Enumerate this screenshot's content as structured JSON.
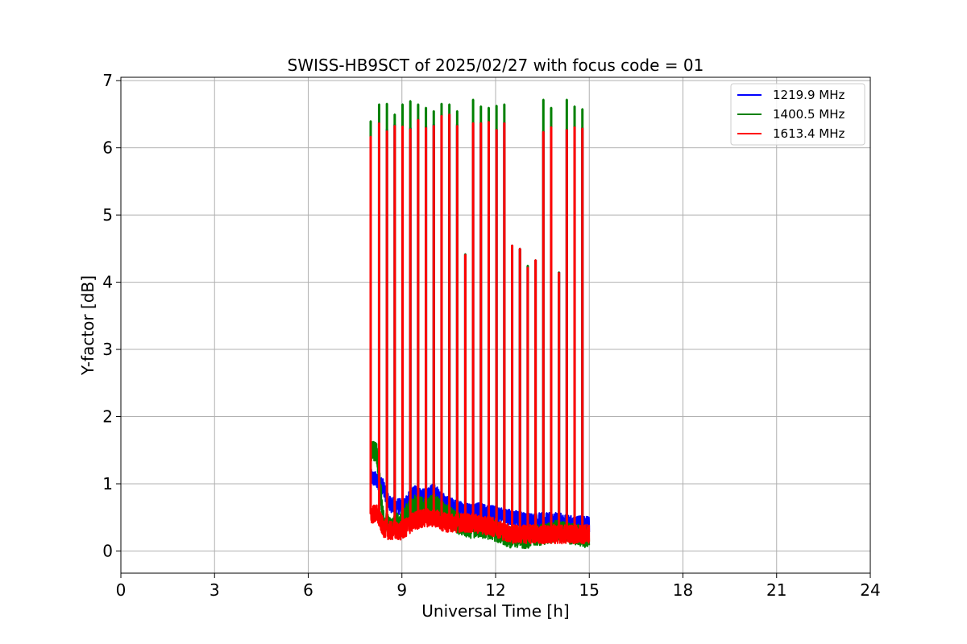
{
  "chart_data": {
    "type": "line",
    "title": "SWISS-HB9SCT of 2025/02/27 with focus code = 01",
    "xlabel": "Universal Time [h]",
    "ylabel": "Y-factor [dB]",
    "xlim": [
      0,
      24
    ],
    "ylim": [
      -0.33,
      7.05
    ],
    "xticks": [
      0,
      3,
      6,
      9,
      12,
      15,
      18,
      21,
      24
    ],
    "yticks": [
      0,
      1,
      2,
      3,
      4,
      5,
      6,
      7
    ],
    "grid": true,
    "legend_position": "top-right",
    "observation_range": [
      8.0,
      15.0
    ],
    "series": [
      {
        "name": "1219.9 MHz",
        "color": "#0000ff",
        "baseline": [
          [
            8.0,
            1.1
          ],
          [
            8.2,
            1.05
          ],
          [
            8.4,
            0.95
          ],
          [
            8.6,
            0.7
          ],
          [
            9.0,
            0.65
          ],
          [
            9.4,
            0.85
          ],
          [
            9.8,
            0.8
          ],
          [
            10.0,
            0.9
          ],
          [
            10.4,
            0.7
          ],
          [
            11.0,
            0.6
          ],
          [
            11.5,
            0.6
          ],
          [
            12.0,
            0.55
          ],
          [
            12.5,
            0.5
          ],
          [
            13.0,
            0.45
          ],
          [
            13.5,
            0.45
          ],
          [
            14.0,
            0.45
          ],
          [
            14.5,
            0.4
          ],
          [
            15.0,
            0.4
          ]
        ],
        "noise": 0.12,
        "spikes": [
          [
            8.0,
            6.2
          ],
          [
            8.27,
            6.38
          ],
          [
            8.52,
            6.28
          ],
          [
            8.77,
            6.35
          ],
          [
            9.02,
            6.33
          ],
          [
            9.27,
            6.3
          ],
          [
            9.52,
            6.43
          ],
          [
            9.77,
            6.32
          ],
          [
            10.02,
            6.35
          ],
          [
            10.27,
            6.5
          ],
          [
            10.52,
            6.5
          ],
          [
            10.77,
            6.35
          ],
          [
            11.03,
            4.42
          ],
          [
            11.28,
            6.38
          ],
          [
            11.53,
            6.38
          ],
          [
            11.78,
            6.4
          ],
          [
            12.03,
            6.28
          ],
          [
            12.28,
            6.38
          ],
          [
            12.53,
            4.55
          ],
          [
            12.78,
            4.5
          ],
          [
            13.03,
            4.23
          ],
          [
            13.28,
            4.33
          ],
          [
            13.53,
            6.25
          ],
          [
            13.78,
            6.32
          ],
          [
            14.03,
            4.15
          ],
          [
            14.28,
            6.28
          ],
          [
            14.53,
            6.32
          ],
          [
            14.78,
            6.3
          ]
        ]
      },
      {
        "name": "1400.5 MHz",
        "color": "#008000",
        "baseline": [
          [
            8.0,
            1.5
          ],
          [
            8.2,
            1.45
          ],
          [
            8.4,
            0.5
          ],
          [
            8.6,
            0.35
          ],
          [
            9.0,
            0.45
          ],
          [
            9.4,
            0.7
          ],
          [
            9.8,
            0.6
          ],
          [
            10.0,
            0.7
          ],
          [
            10.4,
            0.55
          ],
          [
            11.0,
            0.35
          ],
          [
            11.5,
            0.35
          ],
          [
            12.0,
            0.3
          ],
          [
            12.5,
            0.2
          ],
          [
            13.0,
            0.2
          ],
          [
            13.5,
            0.25
          ],
          [
            14.0,
            0.3
          ],
          [
            14.5,
            0.25
          ],
          [
            15.0,
            0.2
          ]
        ],
        "noise": 0.16,
        "spikes": [
          [
            8.0,
            6.4
          ],
          [
            8.27,
            6.65
          ],
          [
            8.52,
            6.66
          ],
          [
            8.77,
            6.5
          ],
          [
            9.02,
            6.65
          ],
          [
            9.27,
            6.7
          ],
          [
            9.52,
            6.65
          ],
          [
            9.77,
            6.6
          ],
          [
            10.02,
            6.55
          ],
          [
            10.27,
            6.66
          ],
          [
            10.52,
            6.65
          ],
          [
            10.77,
            6.55
          ],
          [
            11.03,
            4.42
          ],
          [
            11.28,
            6.72
          ],
          [
            11.53,
            6.62
          ],
          [
            11.78,
            6.6
          ],
          [
            12.03,
            6.63
          ],
          [
            12.28,
            6.65
          ],
          [
            12.53,
            4.55
          ],
          [
            12.78,
            4.5
          ],
          [
            13.03,
            4.25
          ],
          [
            13.28,
            4.33
          ],
          [
            13.53,
            6.72
          ],
          [
            13.78,
            6.6
          ],
          [
            14.03,
            4.15
          ],
          [
            14.28,
            6.72
          ],
          [
            14.53,
            6.62
          ],
          [
            14.78,
            6.58
          ]
        ]
      },
      {
        "name": "1613.4 MHz",
        "color": "#ff0000",
        "baseline": [
          [
            8.0,
            0.55
          ],
          [
            8.2,
            0.55
          ],
          [
            8.4,
            0.35
          ],
          [
            8.6,
            0.3
          ],
          [
            9.0,
            0.3
          ],
          [
            9.4,
            0.45
          ],
          [
            9.8,
            0.5
          ],
          [
            10.0,
            0.5
          ],
          [
            10.4,
            0.42
          ],
          [
            11.0,
            0.42
          ],
          [
            11.5,
            0.4
          ],
          [
            12.0,
            0.35
          ],
          [
            12.5,
            0.25
          ],
          [
            13.0,
            0.25
          ],
          [
            13.5,
            0.25
          ],
          [
            14.0,
            0.25
          ],
          [
            14.5,
            0.25
          ],
          [
            15.0,
            0.25
          ]
        ],
        "noise": 0.14,
        "spikes": [
          [
            8.0,
            6.17
          ],
          [
            8.27,
            6.37
          ],
          [
            8.52,
            6.25
          ],
          [
            8.77,
            6.33
          ],
          [
            9.02,
            6.32
          ],
          [
            9.27,
            6.28
          ],
          [
            9.52,
            6.42
          ],
          [
            9.77,
            6.3
          ],
          [
            10.02,
            6.33
          ],
          [
            10.27,
            6.48
          ],
          [
            10.52,
            6.5
          ],
          [
            10.77,
            6.33
          ],
          [
            11.03,
            4.41
          ],
          [
            11.28,
            6.37
          ],
          [
            11.53,
            6.37
          ],
          [
            11.78,
            6.39
          ],
          [
            12.03,
            6.27
          ],
          [
            12.28,
            6.37
          ],
          [
            12.53,
            4.55
          ],
          [
            12.78,
            4.5
          ],
          [
            13.03,
            4.22
          ],
          [
            13.28,
            4.33
          ],
          [
            13.53,
            6.24
          ],
          [
            13.78,
            6.31
          ],
          [
            14.03,
            4.14
          ],
          [
            14.28,
            6.27
          ],
          [
            14.53,
            6.31
          ],
          [
            14.78,
            6.29
          ]
        ]
      }
    ]
  }
}
